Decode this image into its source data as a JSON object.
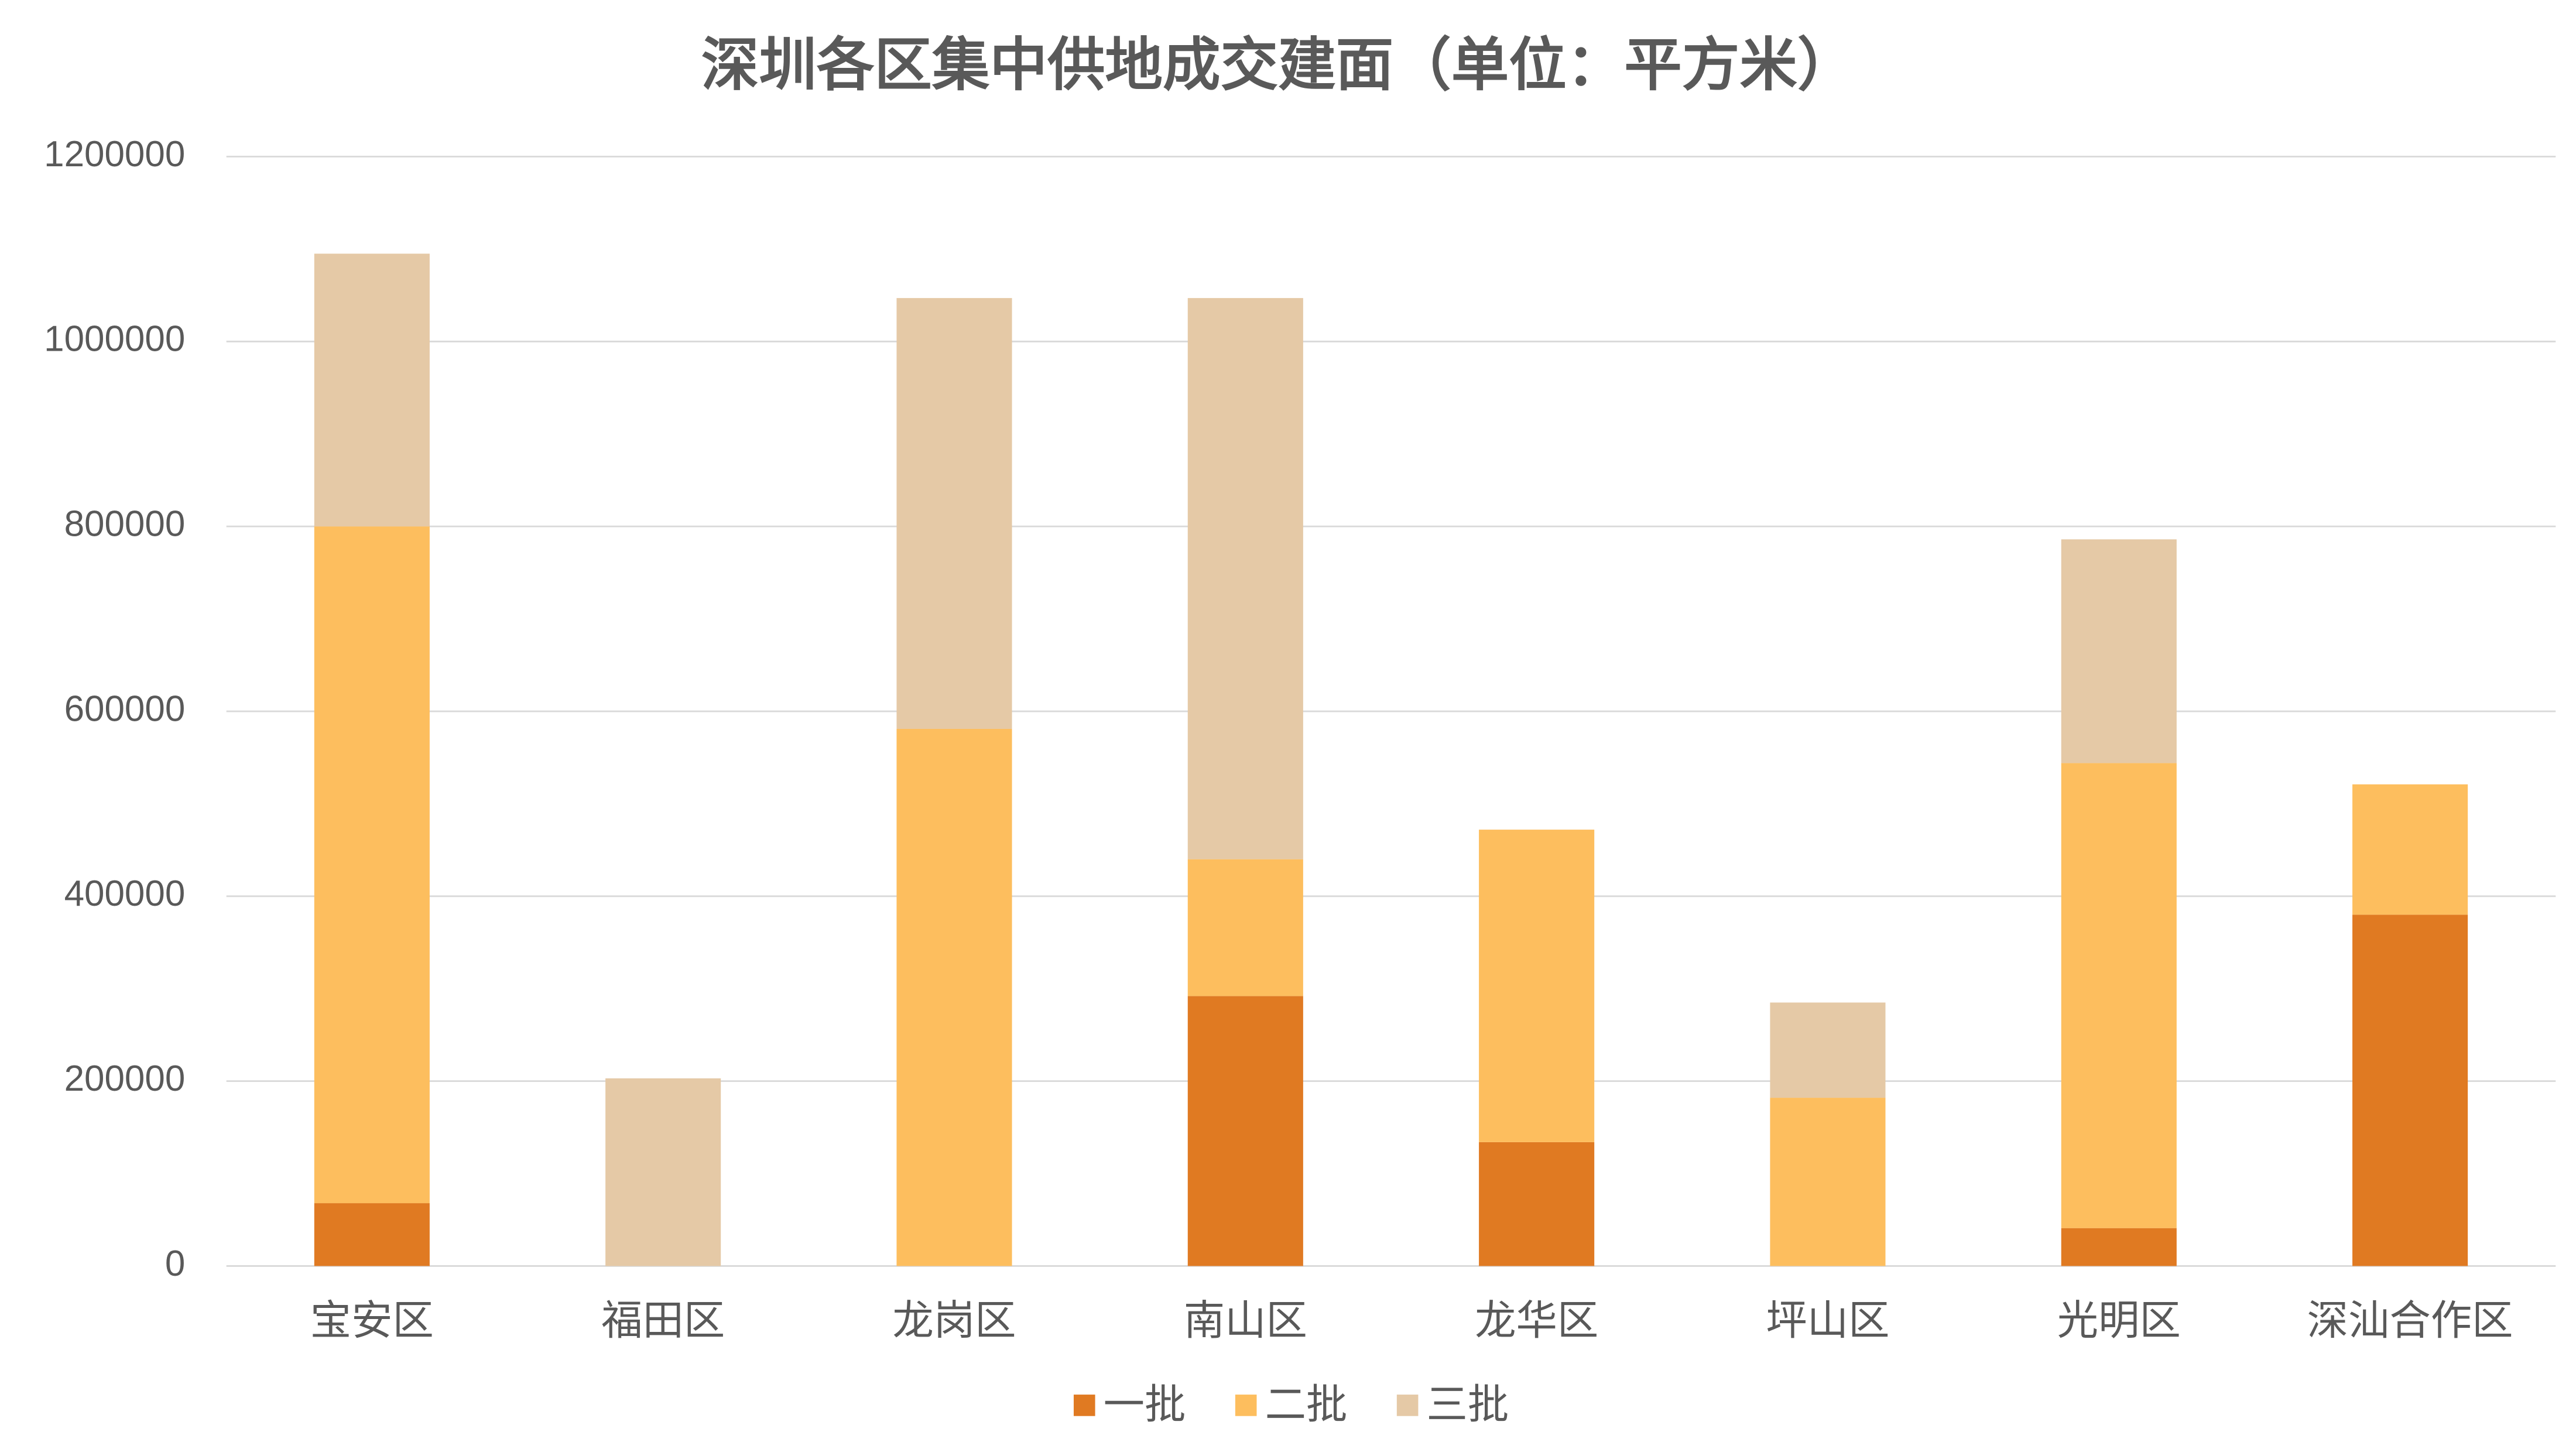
{
  "chart_data": {
    "type": "stacked_bar",
    "title": "深圳各区集中供地成交建面（单位：平方米）",
    "categories": [
      "宝安区",
      "福田区",
      "龙岗区",
      "南山区",
      "龙华区",
      "坪山区",
      "光明区",
      "深汕合作区"
    ],
    "series": [
      {
        "name": "一批",
        "color": "#e07a22",
        "values": [
          68000,
          0,
          0,
          292000,
          134000,
          0,
          41000,
          380000
        ]
      },
      {
        "name": "二批",
        "color": "#fdbe5e",
        "values": [
          732000,
          0,
          581000,
          148000,
          338000,
          182000,
          503000,
          141000
        ]
      },
      {
        "name": "三批",
        "color": "#e5c9a6",
        "values": [
          295000,
          203000,
          466000,
          607000,
          0,
          103000,
          242000,
          0
        ]
      }
    ],
    "ylim": [
      0,
      1200000
    ],
    "yticks": [
      0,
      200000,
      400000,
      600000,
      800000,
      1000000,
      1200000
    ],
    "grid": true,
    "legend": "bottom"
  }
}
